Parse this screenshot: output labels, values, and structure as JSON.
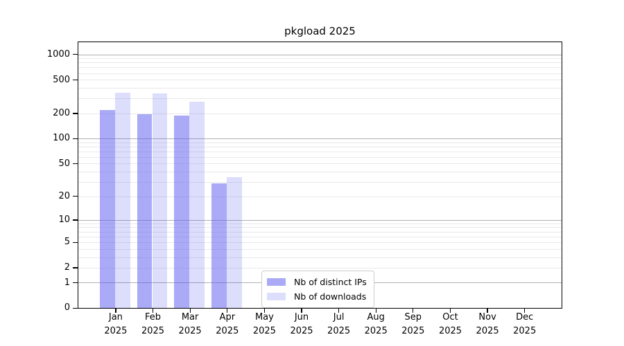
{
  "chart_data": {
    "type": "bar",
    "title": "pkgload 2025",
    "categories": [
      "Jan",
      "Feb",
      "Mar",
      "Apr",
      "May",
      "Jun",
      "Jul",
      "Aug",
      "Sep",
      "Oct",
      "Nov",
      "Dec"
    ],
    "category_year": "2025",
    "series": [
      {
        "name": "Nb of distinct IPs",
        "color": "rgba(85,85,240,0.5)",
        "values": [
          218,
          195,
          189,
          29,
          null,
          null,
          null,
          null,
          null,
          null,
          null,
          null
        ]
      },
      {
        "name": "Nb of downloads",
        "color": "rgba(85,85,240,0.2)",
        "values": [
          348,
          343,
          273,
          34,
          null,
          null,
          null,
          null,
          null,
          null,
          null,
          null
        ]
      }
    ],
    "y_axis": {
      "scale": "log1p",
      "min": 0,
      "max": 1390,
      "ticks": [
        {
          "value": 0,
          "label": "0"
        },
        {
          "value": 1,
          "label": "1"
        },
        {
          "value": 2,
          "label": "2"
        },
        {
          "value": 5,
          "label": "5"
        },
        {
          "value": 10,
          "label": "10"
        },
        {
          "value": 20,
          "label": "20"
        },
        {
          "value": 50,
          "label": "50"
        },
        {
          "value": 100,
          "label": "100"
        },
        {
          "value": 200,
          "label": "200"
        },
        {
          "value": 500,
          "label": "500"
        },
        {
          "value": 1000,
          "label": "1000"
        }
      ]
    },
    "gridlines": {
      "major_color": "#b0b0b0",
      "minor_color": "#e9e9e9",
      "major": [
        1,
        10,
        100,
        1000
      ],
      "minor": [
        2,
        3,
        4,
        5,
        6,
        7,
        8,
        9,
        20,
        30,
        40,
        50,
        60,
        70,
        80,
        90,
        200,
        300,
        400,
        500,
        600,
        700,
        800,
        900
      ]
    },
    "legend": {
      "entries": [
        "Nb of distinct IPs",
        "Nb of downloads"
      ]
    }
  }
}
